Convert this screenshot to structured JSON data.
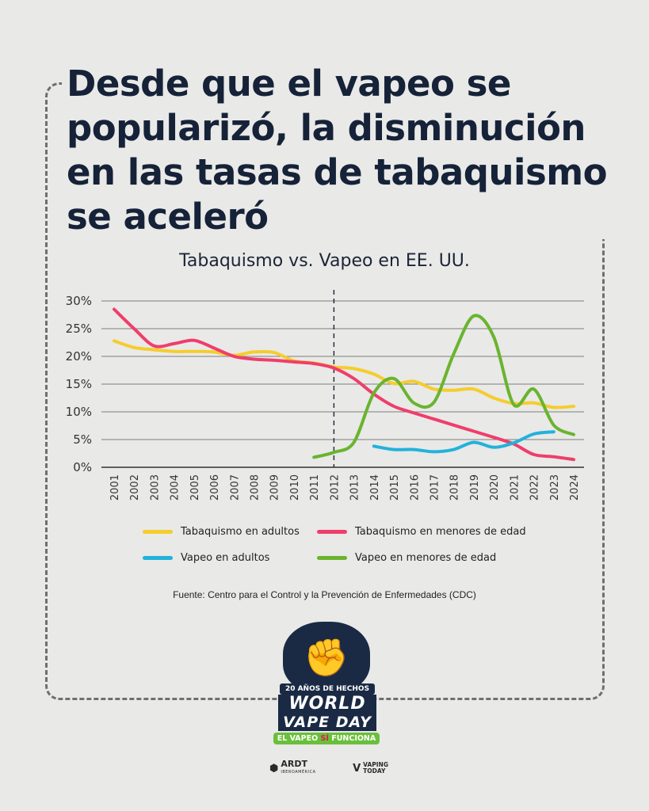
{
  "headline": "Desde que el vapeo se popularizó, la disminución en las tasas de tabaquismo se aceleró",
  "chart_data": {
    "type": "line",
    "title": "Tabaquismo vs. Vapeo en EE. UU.",
    "xlabel": "",
    "ylabel": "",
    "ylim": [
      0,
      30
    ],
    "ytick_labels": [
      "30%",
      "25%",
      "20%",
      "15%",
      "10%",
      "5%",
      "0%"
    ],
    "yticks": [
      30,
      25,
      20,
      15,
      10,
      5,
      0
    ],
    "grid": true,
    "reference_line": {
      "x": 2012,
      "style": "dashed"
    },
    "categories": [
      "2001",
      "2002",
      "2003",
      "2004",
      "2005",
      "2006",
      "2007",
      "2008",
      "2009",
      "2010",
      "2011",
      "2012",
      "2013",
      "2014",
      "2015",
      "2016",
      "2017",
      "2018",
      "2019",
      "2020",
      "2021",
      "2022",
      "2023",
      "2024"
    ],
    "series": [
      {
        "name": "Tabaquismo en adultos",
        "color": "#f5cd2d",
        "values": [
          22.8,
          21.6,
          21.2,
          20.9,
          20.9,
          20.8,
          20.2,
          20.8,
          20.7,
          19.2,
          18.8,
          18.1,
          17.8,
          16.8,
          15.1,
          15.5,
          14.1,
          13.9,
          14.1,
          12.5,
          11.5,
          11.6,
          10.8,
          11.0
        ]
      },
      {
        "name": "Tabaquismo en menores de edad",
        "color": "#ef3e6b",
        "values": [
          28.5,
          25.0,
          21.9,
          22.3,
          22.9,
          21.5,
          20.0,
          19.5,
          19.3,
          19.0,
          18.7,
          17.9,
          16.0,
          13.2,
          11.0,
          9.8,
          8.7,
          7.6,
          6.5,
          5.4,
          4.2,
          2.3,
          1.9,
          1.4
        ]
      },
      {
        "name": "Vapeo en adultos",
        "color": "#22b2da",
        "values": [
          null,
          null,
          null,
          null,
          null,
          null,
          null,
          null,
          null,
          null,
          null,
          null,
          null,
          3.8,
          3.2,
          3.2,
          2.8,
          3.2,
          4.5,
          3.6,
          4.4,
          6.0,
          6.4,
          null
        ]
      },
      {
        "name": "Vapeo en menores de edad",
        "color": "#6ab42f",
        "values": [
          null,
          null,
          null,
          null,
          null,
          null,
          null,
          null,
          null,
          null,
          1.8,
          2.7,
          4.5,
          13.4,
          16.0,
          11.6,
          11.7,
          20.5,
          27.3,
          23.5,
          11.3,
          14.1,
          7.6,
          5.9
        ]
      }
    ]
  },
  "source": "Fuente: Centro para el Control y la Prevención de Enfermedades (CDC)",
  "badge": {
    "top_text": "20 AÑOS DE HECHOS",
    "line1": "WORLD",
    "line2": "VAPE DAY",
    "tagline_a": "EL VAPEO ",
    "tagline_si": "SÍ",
    "tagline_b": " FUNCIONA"
  },
  "partners": {
    "ardt_name": "ARDT",
    "ardt_sub": "IBEROAMÉRICA",
    "vt_line1": "VAPING",
    "vt_line2": "TODAY"
  }
}
